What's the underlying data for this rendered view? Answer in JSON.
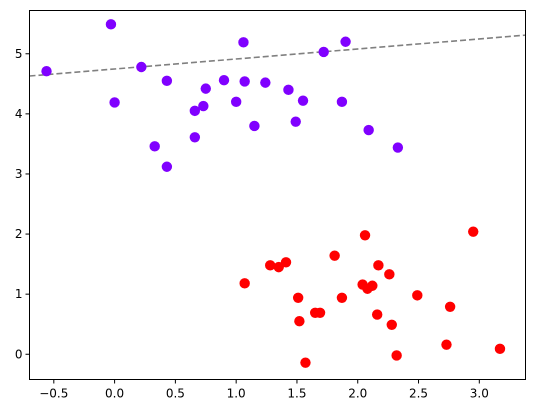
{
  "chart_data": {
    "type": "scatter",
    "title": "",
    "xlabel": "",
    "ylabel": "",
    "xlim": [
      -0.7,
      3.38
    ],
    "ylim": [
      -0.42,
      5.72
    ],
    "grid": false,
    "xticks": [
      -0.5,
      0.0,
      0.5,
      1.0,
      1.5,
      2.0,
      2.5,
      3.0
    ],
    "xtick_labels": [
      "−0.5",
      "0.0",
      "0.5",
      "1.0",
      "1.5",
      "2.0",
      "2.5",
      "3.0"
    ],
    "yticks": [
      0,
      1,
      2,
      3,
      4,
      5
    ],
    "ytick_labels": [
      "0",
      "1",
      "2",
      "3",
      "4",
      "5"
    ],
    "series": [
      {
        "color": "#8000ff",
        "points": [
          [
            -0.56,
            4.71
          ],
          [
            -0.03,
            5.49
          ],
          [
            0.0,
            4.19
          ],
          [
            0.22,
            4.78
          ],
          [
            0.33,
            3.46
          ],
          [
            0.43,
            4.55
          ],
          [
            0.43,
            3.12
          ],
          [
            0.66,
            4.05
          ],
          [
            0.66,
            3.61
          ],
          [
            0.73,
            4.13
          ],
          [
            0.75,
            4.42
          ],
          [
            0.9,
            4.56
          ],
          [
            1.0,
            4.2
          ],
          [
            1.06,
            5.19
          ],
          [
            1.07,
            4.54
          ],
          [
            1.15,
            3.8
          ],
          [
            1.24,
            4.52
          ],
          [
            1.43,
            4.4
          ],
          [
            1.49,
            3.87
          ],
          [
            1.55,
            4.22
          ],
          [
            1.72,
            5.03
          ],
          [
            1.87,
            4.2
          ],
          [
            1.9,
            5.2
          ],
          [
            2.09,
            3.73
          ],
          [
            2.33,
            3.44
          ]
        ]
      },
      {
        "color": "#ff0000",
        "points": [
          [
            1.07,
            1.18
          ],
          [
            1.28,
            1.48
          ],
          [
            1.35,
            1.45
          ],
          [
            1.41,
            1.53
          ],
          [
            1.51,
            0.94
          ],
          [
            1.52,
            0.55
          ],
          [
            1.57,
            -0.14
          ],
          [
            1.65,
            0.69
          ],
          [
            1.69,
            0.69
          ],
          [
            1.81,
            1.64
          ],
          [
            1.87,
            0.94
          ],
          [
            2.04,
            1.16
          ],
          [
            2.06,
            1.98
          ],
          [
            2.08,
            1.09
          ],
          [
            2.12,
            1.14
          ],
          [
            2.16,
            0.66
          ],
          [
            2.17,
            1.48
          ],
          [
            2.26,
            1.33
          ],
          [
            2.28,
            0.49
          ],
          [
            2.32,
            -0.02
          ],
          [
            2.49,
            0.98
          ],
          [
            2.73,
            0.16
          ],
          [
            2.76,
            0.79
          ],
          [
            2.95,
            2.04
          ],
          [
            3.17,
            0.09
          ]
        ]
      }
    ],
    "line": {
      "color": "#808080",
      "style": "dashed",
      "points": [
        [
          -0.7,
          4.63
        ],
        [
          3.38,
          5.31
        ]
      ]
    }
  }
}
